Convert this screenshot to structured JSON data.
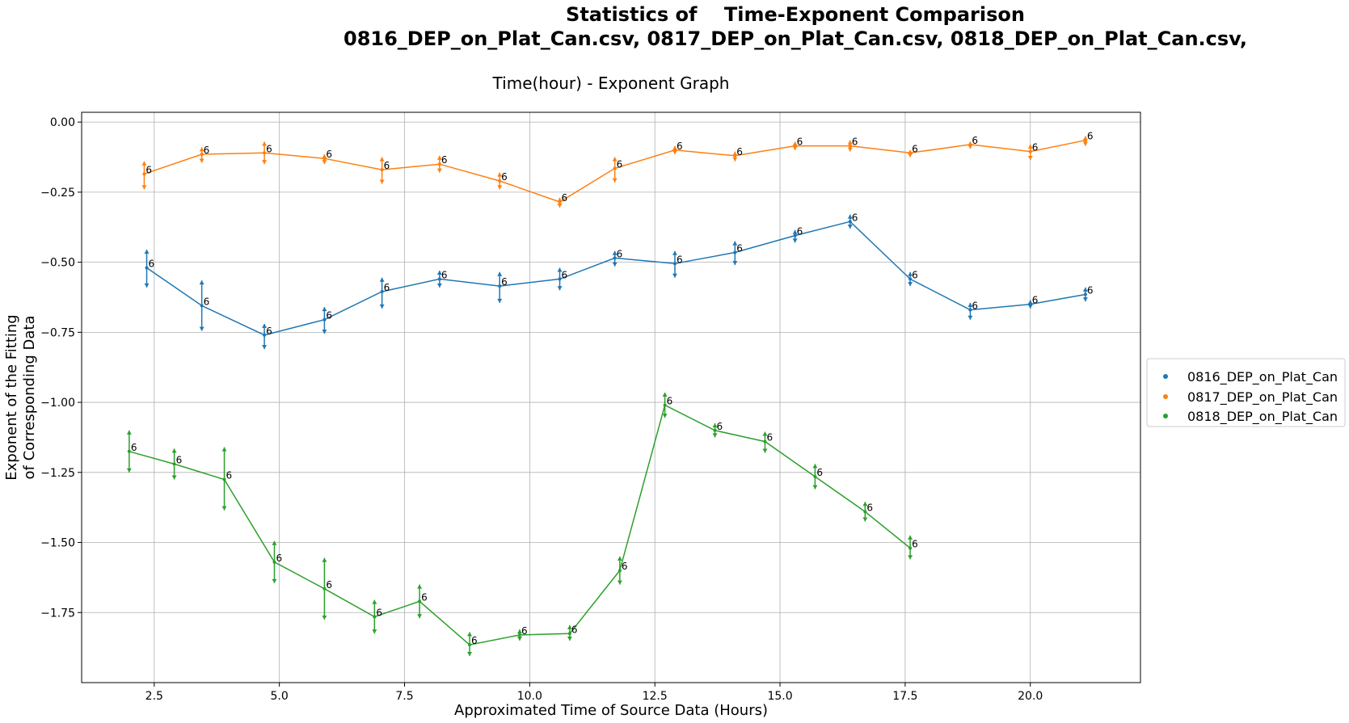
{
  "chart_data": {
    "type": "line",
    "suptitle_line1": "Statistics of    Time-Exponent Comparison",
    "suptitle_line2": "0816_DEP_on_Plat_Can.csv, 0817_DEP_on_Plat_Can.csv, 0818_DEP_on_Plat_Can.csv,",
    "title": "Time(hour) - Exponent Graph",
    "xlabel": "Approximated Time of Source Data (Hours)",
    "ylabel_line1": "Exponent of the Fitting",
    "ylabel_line2": "of Corresponding Data",
    "xlim": [
      1.05,
      22.2
    ],
    "ylim": [
      -2.0,
      0.035
    ],
    "xticks": [
      2.5,
      5.0,
      7.5,
      10.0,
      12.5,
      15.0,
      17.5,
      20.0
    ],
    "xtick_labels": [
      "2.5",
      "5.0",
      "7.5",
      "10.0",
      "12.5",
      "15.0",
      "17.5",
      "20.0"
    ],
    "yticks": [
      0.0,
      -0.25,
      -0.5,
      -0.75,
      -1.0,
      -1.25,
      -1.5,
      -1.75
    ],
    "ytick_labels": [
      "0.00",
      "−0.25",
      "−0.50",
      "−0.75",
      "−1.00",
      "−1.25",
      "−1.50",
      "−1.75"
    ],
    "grid": true,
    "legend_position": "center-right, outside plot",
    "point_label": "6",
    "series": [
      {
        "name": "0816_DEP_on_Plat_Can",
        "color": "#1f77b4",
        "x": [
          2.35,
          3.45,
          4.7,
          5.9,
          7.05,
          8.2,
          9.4,
          10.6,
          11.7,
          12.9,
          14.1,
          15.3,
          16.4,
          17.6,
          18.8,
          20.0,
          21.1
        ],
        "y": [
          -0.52,
          -0.655,
          -0.76,
          -0.705,
          -0.605,
          -0.56,
          -0.585,
          -0.56,
          -0.485,
          -0.505,
          -0.465,
          -0.405,
          -0.355,
          -0.56,
          -0.67,
          -0.65,
          -0.615
        ],
        "err_low": [
          0.07,
          0.09,
          0.05,
          0.05,
          0.06,
          0.03,
          0.06,
          0.04,
          0.03,
          0.05,
          0.045,
          0.025,
          0.025,
          0.025,
          0.035,
          0.015,
          0.025
        ],
        "err_high": [
          0.065,
          0.09,
          0.04,
          0.045,
          0.05,
          0.03,
          0.05,
          0.04,
          0.025,
          0.045,
          0.04,
          0.02,
          0.025,
          0.025,
          0.025,
          0.015,
          0.025
        ]
      },
      {
        "name": "0817_DEP_on_Plat_Can",
        "color": "#ff7f0e",
        "x": [
          2.3,
          3.45,
          4.7,
          5.9,
          7.05,
          8.2,
          9.4,
          10.6,
          11.7,
          12.9,
          14.1,
          15.3,
          16.4,
          17.6,
          18.8,
          20.0,
          21.1
        ],
        "y": [
          -0.185,
          -0.115,
          -0.11,
          -0.13,
          -0.17,
          -0.15,
          -0.21,
          -0.285,
          -0.165,
          -0.1,
          -0.12,
          -0.085,
          -0.085,
          -0.11,
          -0.08,
          -0.105,
          -0.065
        ],
        "err_low": [
          0.055,
          0.03,
          0.04,
          0.02,
          0.05,
          0.03,
          0.03,
          0.02,
          0.05,
          0.015,
          0.02,
          0.015,
          0.02,
          0.015,
          0.015,
          0.03,
          0.02
        ],
        "err_high": [
          0.045,
          0.025,
          0.04,
          0.015,
          0.045,
          0.03,
          0.03,
          0.015,
          0.04,
          0.015,
          0.015,
          0.015,
          0.02,
          0.01,
          0.01,
          0.025,
          0.015
        ]
      },
      {
        "name": "0818_DEP_on_Plat_Can",
        "color": "#2ca02c",
        "x": [
          2.0,
          2.9,
          3.9,
          4.9,
          5.9,
          6.9,
          7.8,
          8.8,
          9.8,
          10.8,
          11.8,
          12.7,
          13.7,
          14.7,
          15.7,
          16.7,
          17.6
        ],
        "y": [
          -1.175,
          -1.22,
          -1.275,
          -1.57,
          -1.665,
          -1.765,
          -1.71,
          -1.865,
          -1.83,
          -1.825,
          -1.6,
          -1.01,
          -1.1,
          -1.14,
          -1.265,
          -1.39,
          -1.52
        ],
        "err_low": [
          0.075,
          0.055,
          0.11,
          0.075,
          0.11,
          0.06,
          0.06,
          0.04,
          0.02,
          0.025,
          0.05,
          0.045,
          0.025,
          0.04,
          0.045,
          0.035,
          0.04
        ],
        "err_high": [
          0.075,
          0.055,
          0.115,
          0.075,
          0.11,
          0.06,
          0.06,
          0.045,
          0.02,
          0.03,
          0.05,
          0.045,
          0.025,
          0.035,
          0.045,
          0.035,
          0.045
        ]
      }
    ]
  }
}
